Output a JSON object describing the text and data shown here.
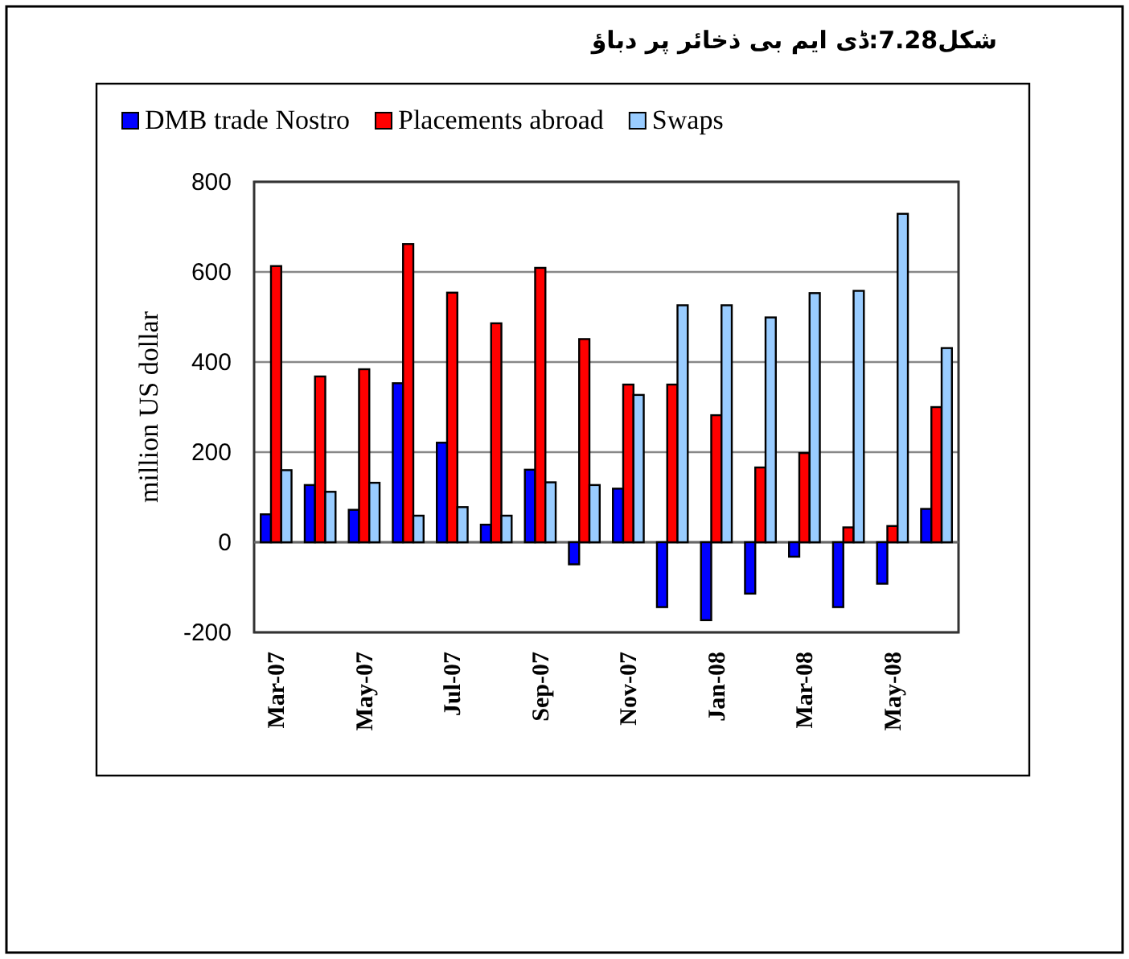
{
  "chart_data": {
    "type": "bar",
    "title": "شکل7.28:ڈی ایم بی ذخائر پر دباؤ",
    "ylabel": "million US dollar",
    "categories": [
      "Mar-07",
      null,
      "May-07",
      null,
      "Jul-07",
      null,
      "Sep-07",
      null,
      "Nov-07",
      null,
      "Jan-08",
      null,
      "Mar-08",
      null,
      "May-08",
      null
    ],
    "series": [
      {
        "name": "DMB trade Nostro",
        "color": "#0000ff",
        "values": [
          62,
          127,
          72,
          353,
          221,
          39,
          161,
          -49,
          119,
          -144,
          -173,
          -114,
          -32,
          -144,
          -92,
          74
        ]
      },
      {
        "name": "Placements abroad",
        "color": "#ff0000",
        "values": [
          613,
          368,
          384,
          662,
          554,
          486,
          609,
          451,
          350,
          350,
          282,
          166,
          198,
          33,
          36,
          300
        ]
      },
      {
        "name": "Swaps",
        "color": "#99ccff",
        "values": [
          160,
          112,
          132,
          59,
          78,
          59,
          133,
          127,
          327,
          526,
          526,
          499,
          553,
          558,
          729,
          431
        ]
      }
    ],
    "ylim": [
      -200,
      800
    ],
    "yticks": [
      -200,
      0,
      200,
      400,
      600,
      800
    ],
    "grid": "y",
    "legend": "top left"
  }
}
